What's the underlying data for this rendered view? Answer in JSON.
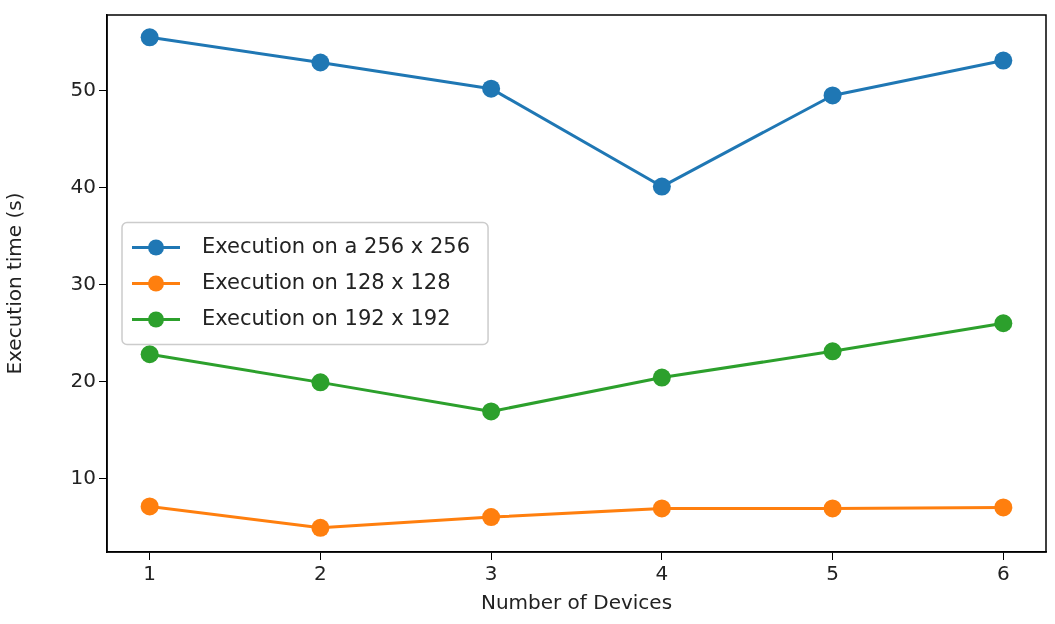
{
  "chart_data": {
    "type": "line",
    "xlabel": "Number of Devices",
    "ylabel": "Execution time (s)",
    "x": [
      1,
      2,
      3,
      4,
      5,
      6
    ],
    "series": [
      {
        "name": "Execution on a 256 x 256",
        "color": "#1f77b4",
        "values": [
          55.5,
          52.9,
          50.2,
          40.1,
          49.5,
          53.1
        ]
      },
      {
        "name": "Execution on 128 x 128",
        "color": "#ff7f0e",
        "values": [
          7.1,
          4.9,
          6.0,
          6.9,
          6.9,
          7.0
        ]
      },
      {
        "name": "Execution on 192 x 192",
        "color": "#2ca02c",
        "values": [
          22.8,
          19.9,
          16.9,
          20.4,
          23.1,
          26.0
        ]
      }
    ],
    "xlim": [
      0.75,
      6.25
    ],
    "xticks": [
      1,
      2,
      3,
      4,
      5,
      6
    ],
    "ylim": [
      2.4,
      57.8
    ],
    "yticks": [
      10,
      20,
      30,
      40,
      50
    ],
    "grid": false,
    "legend": "left",
    "marker": "circle",
    "line_style": "solid"
  }
}
